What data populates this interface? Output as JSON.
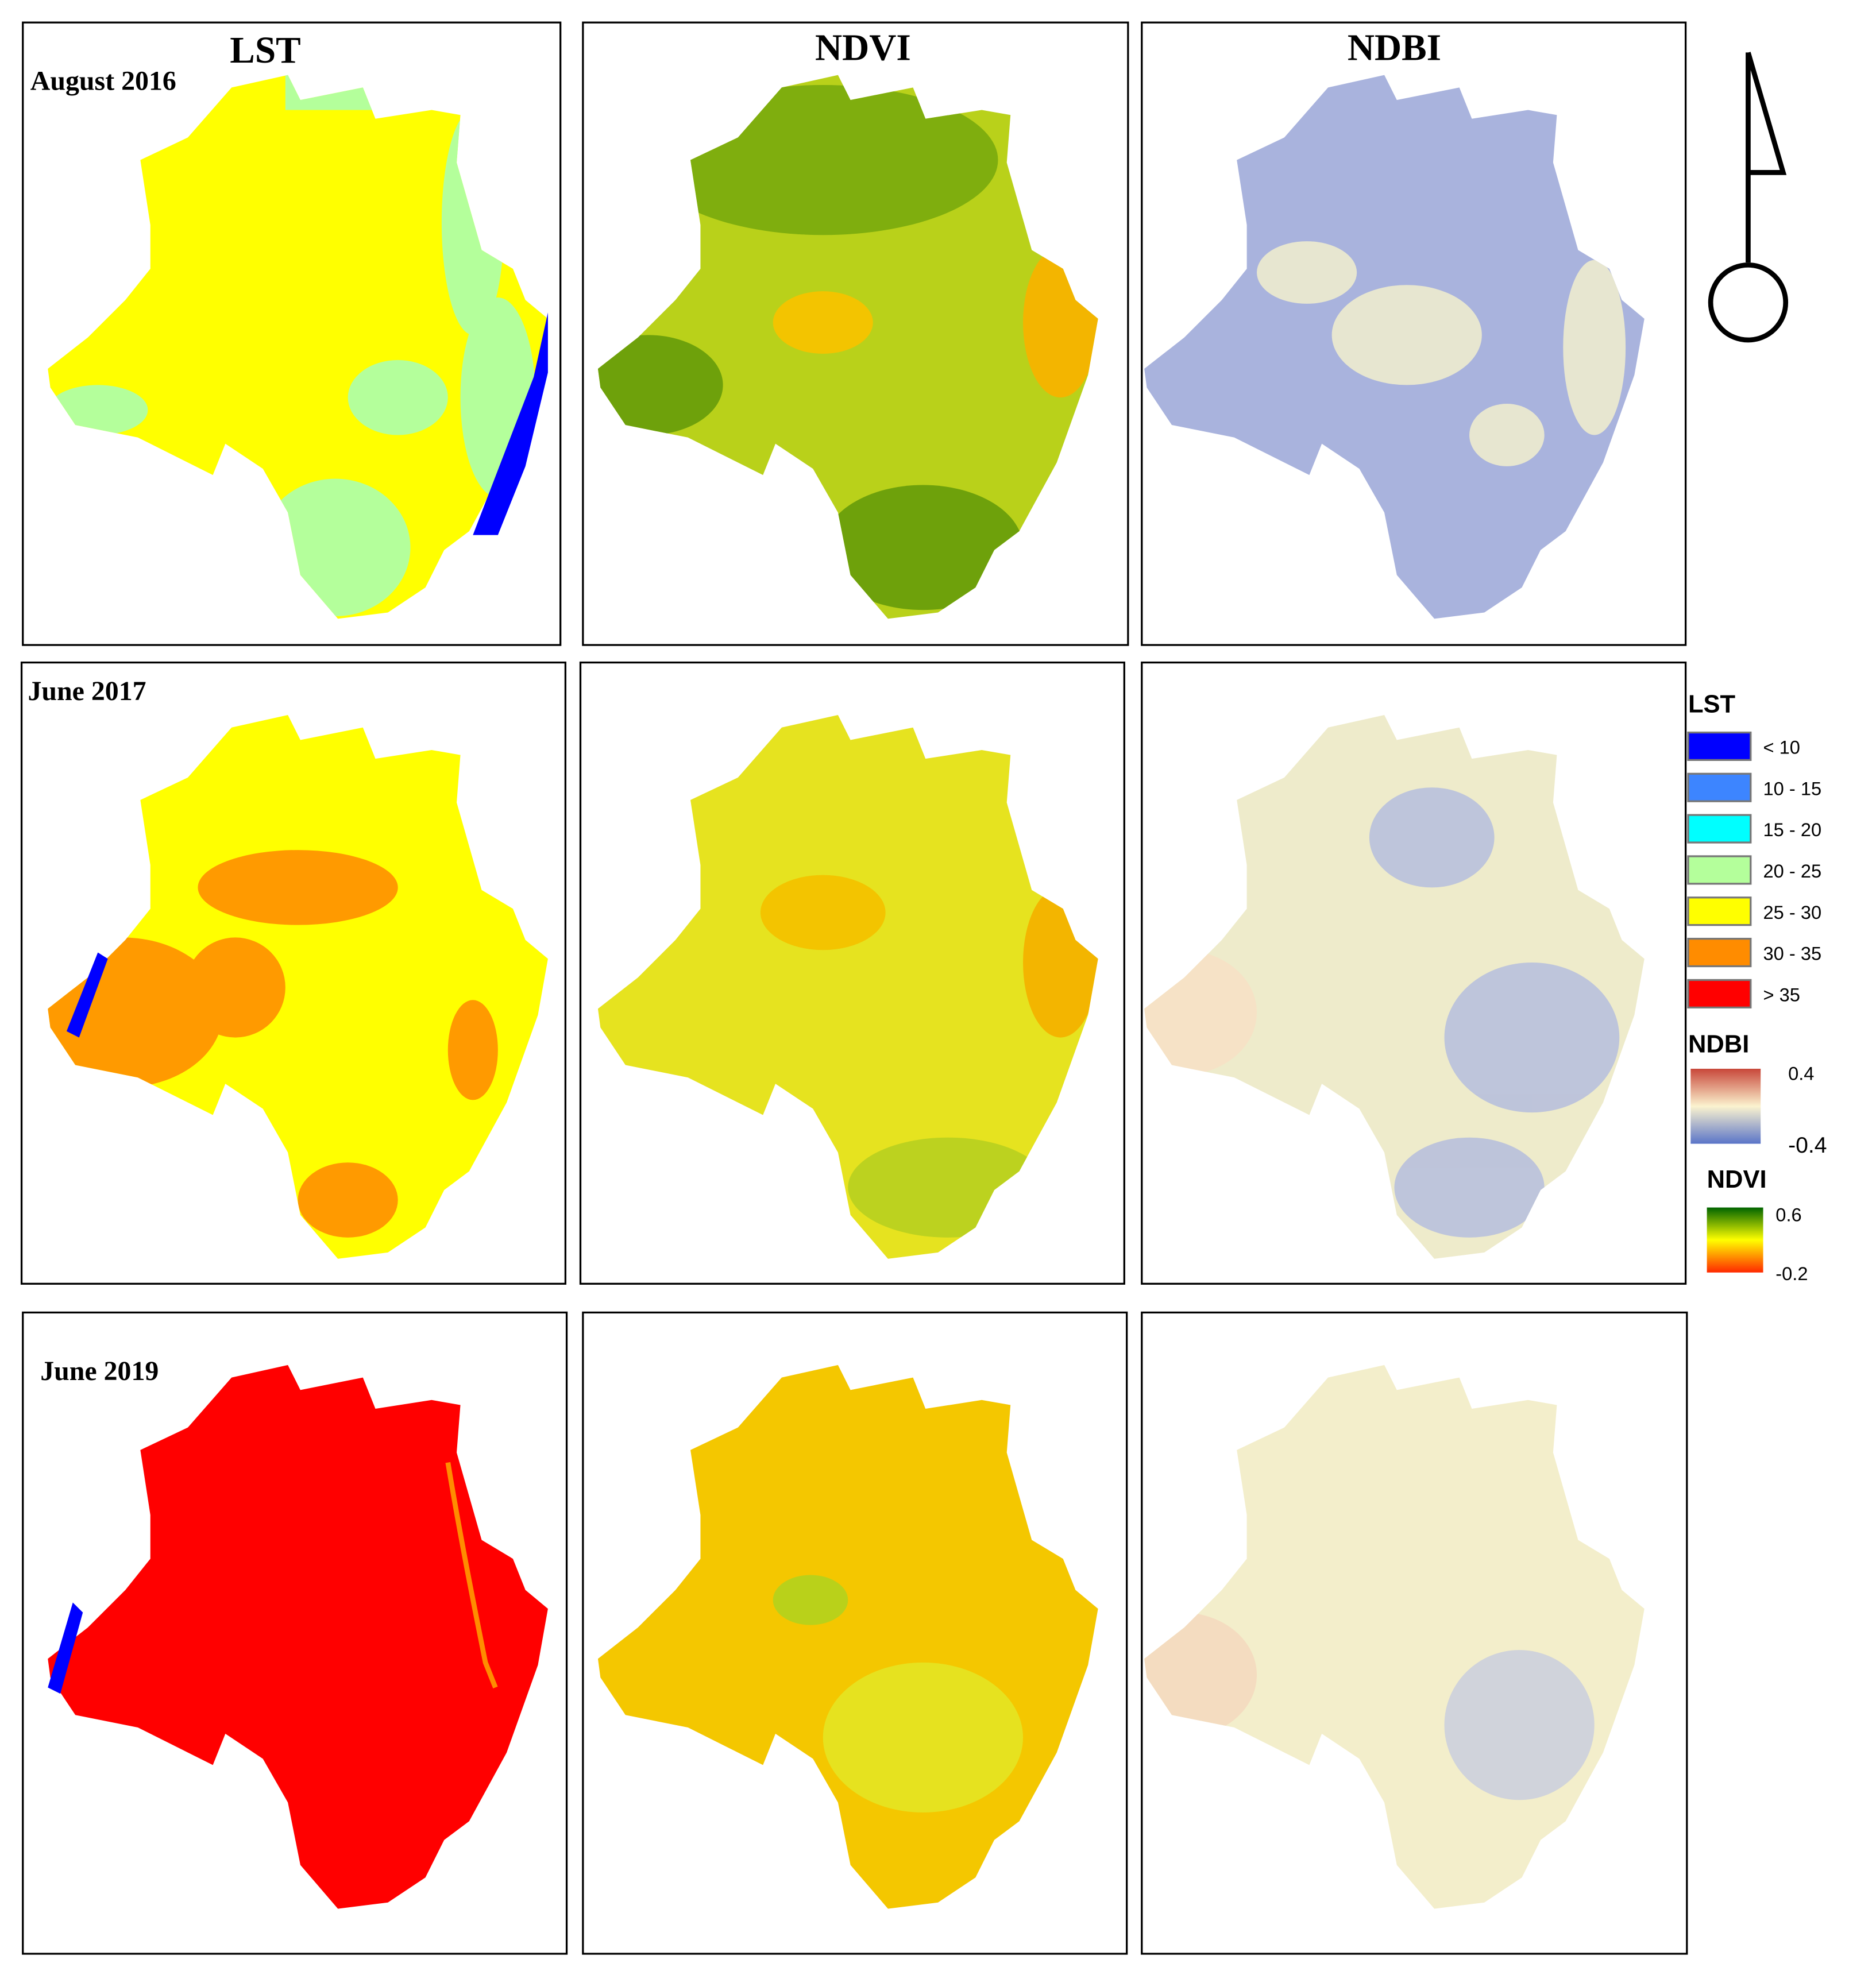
{
  "headers": [
    "LST",
    "NDVI",
    "NDBI"
  ],
  "rows": [
    "August 2016",
    "June 2017",
    "June 2019"
  ],
  "legend": {
    "lst": {
      "title": "LST",
      "classes": [
        {
          "label": "< 10",
          "color": "#0000ff"
        },
        {
          "label": "10 - 15",
          "color": "#3d85ff"
        },
        {
          "label": "15 - 20",
          "color": "#00ffff"
        },
        {
          "label": "20 - 25",
          "color": "#b4ff9b"
        },
        {
          "label": "25 - 30",
          "color": "#ffff00"
        },
        {
          "label": "30 - 35",
          "color": "#ff8c00"
        },
        {
          "label": "> 35",
          "color": "#ff0000"
        }
      ]
    },
    "ndbi": {
      "title": "NDBI",
      "max": 0.4,
      "min": -0.4
    },
    "ndvi": {
      "title": "NDVI",
      "max": 0.6,
      "min": -0.2
    }
  }
}
